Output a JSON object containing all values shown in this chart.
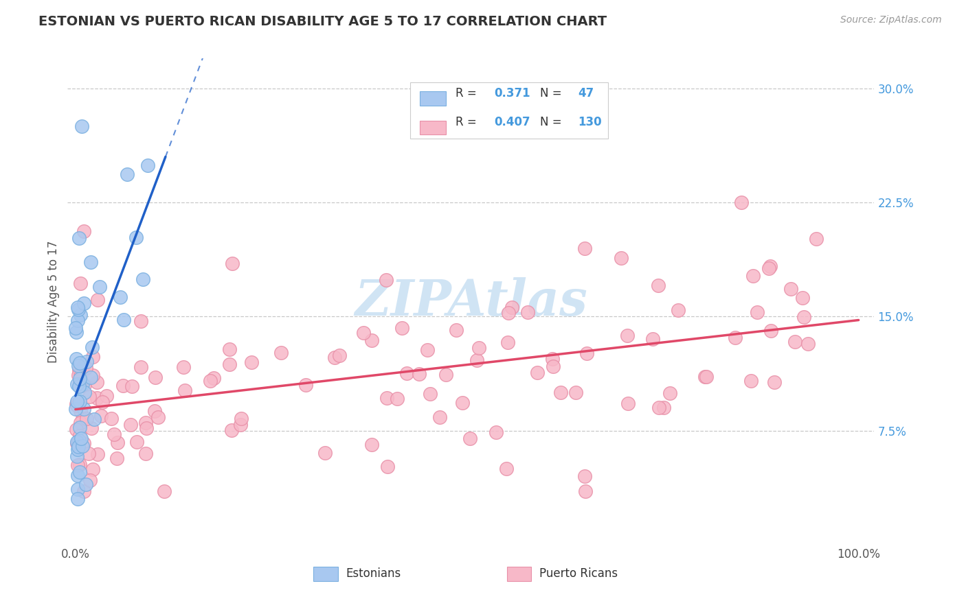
{
  "title": "ESTONIAN VS PUERTO RICAN DISABILITY AGE 5 TO 17 CORRELATION CHART",
  "source_text": "Source: ZipAtlas.com",
  "ylabel": "Disability Age 5 to 17",
  "r_estonian": 0.371,
  "n_estonian": 47,
  "r_puerto_rican": 0.407,
  "n_puerto_rican": 130,
  "color_estonian_fill": "#a8c8f0",
  "color_estonian_edge": "#7ab0e0",
  "color_estonian_line": "#2060c8",
  "color_puerto_rican_fill": "#f7b8c8",
  "color_puerto_rican_edge": "#e890a8",
  "color_puerto_rican_line": "#e04868",
  "color_grid": "#c8c8c8",
  "color_ytick": "#4499dd",
  "color_title": "#333333",
  "color_source": "#999999",
  "watermark_color": "#d0e4f4",
  "background_color": "#ffffff"
}
